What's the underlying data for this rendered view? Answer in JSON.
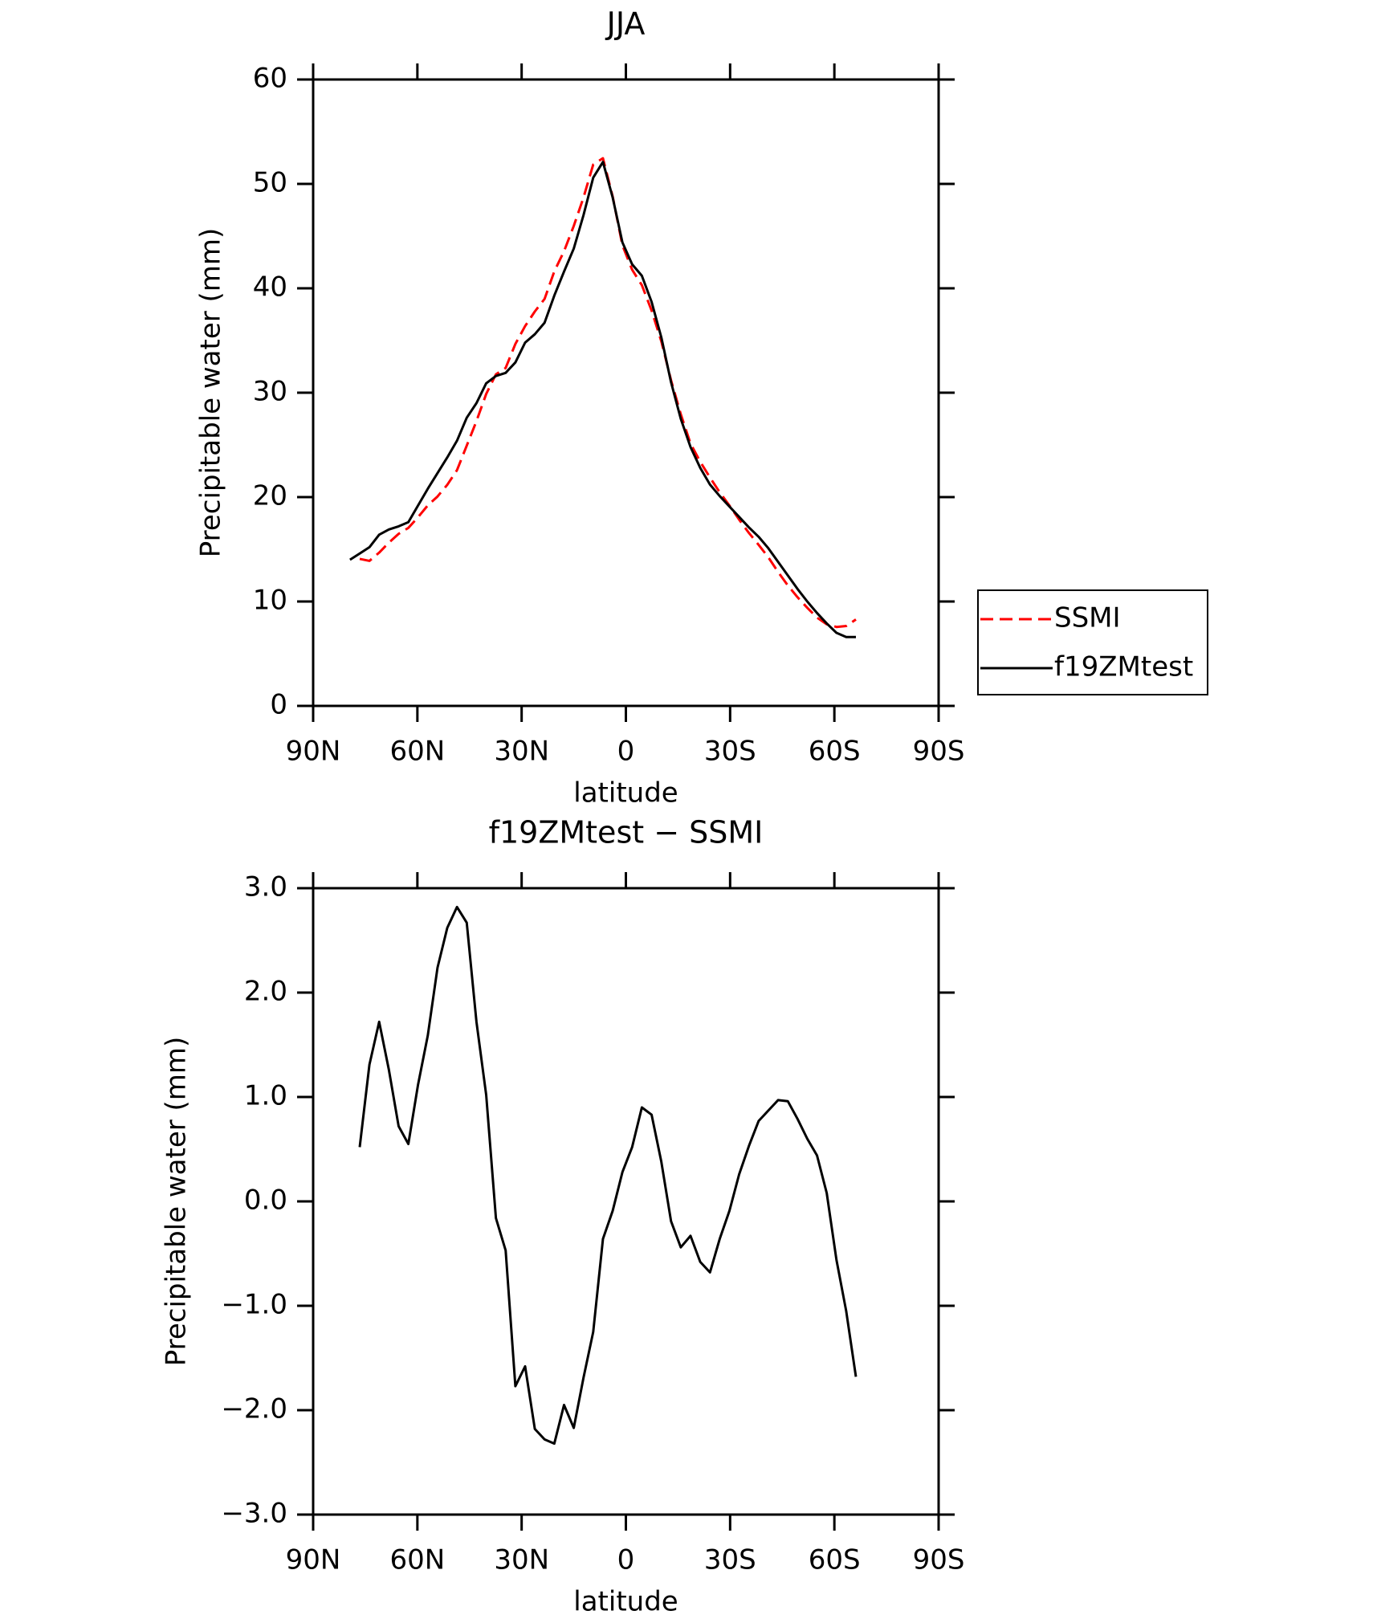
{
  "chart_data": [
    {
      "type": "line",
      "title": "JJA",
      "xlabel": "latitude",
      "ylabel": "Precipitable water (mm)",
      "x": [
        79.4,
        76.6,
        73.8,
        71,
        68.2,
        65.4,
        62.6,
        59.8,
        57,
        54.2,
        51.4,
        48.6,
        45.8,
        43,
        40.2,
        37.4,
        34.6,
        31.8,
        29,
        26.2,
        23.4,
        20.6,
        17.8,
        15,
        12.2,
        9.4,
        6.6,
        3.8,
        1,
        -1.8,
        -4.6,
        -7.4,
        -10.2,
        -13,
        -15.8,
        -18.6,
        -21.4,
        -24.2,
        -27,
        -29.8,
        -32.6,
        -35.4,
        -38.2,
        -41,
        -43.8,
        -46.6,
        -49.4,
        -52.2,
        -55,
        -57.8,
        -60.6,
        -63.4,
        -66.2
      ],
      "xlim": [
        90,
        -90
      ],
      "xticks": [
        {
          "value": 90,
          "label": "90N"
        },
        {
          "value": 60,
          "label": "60N"
        },
        {
          "value": 30,
          "label": "30N"
        },
        0,
        {
          "value": -30,
          "label": "30S"
        },
        {
          "value": -60,
          "label": "60S"
        },
        {
          "value": -90,
          "label": "90S"
        }
      ],
      "ylim": [
        0,
        60
      ],
      "yticks": [
        0,
        10,
        20,
        30,
        40,
        50,
        60
      ],
      "legend": "right",
      "series": [
        {
          "name": "SSMI",
          "color": "#ff0000",
          "linestyle": "dashed",
          "values": [
            null,
            14.08,
            13.89,
            14.68,
            15.64,
            16.48,
            17.05,
            18.08,
            19.21,
            20.06,
            21.18,
            22.58,
            24.93,
            27.28,
            29.88,
            31.76,
            32.37,
            34.67,
            36.38,
            37.78,
            38.98,
            41.62,
            43.55,
            45.97,
            48.69,
            51.85,
            52.46,
            48.79,
            44.12,
            41.78,
            40.3,
            37.87,
            34.92,
            31.19,
            27.94,
            25.13,
            23.38,
            21.88,
            20.46,
            19.19,
            17.84,
            16.57,
            15.43,
            14.23,
            12.83,
            11.54,
            10.41,
            9.4,
            8.46,
            7.82,
            7.56,
            7.65,
            8.28
          ]
        },
        {
          "name": "f19ZMtest",
          "color": "#000000",
          "linestyle": "solid",
          "values": [
            14.0,
            14.6,
            15.2,
            16.4,
            16.9,
            17.2,
            17.6,
            19.2,
            20.8,
            22.3,
            23.8,
            25.4,
            27.6,
            29.0,
            30.9,
            31.6,
            31.9,
            32.9,
            34.8,
            35.6,
            36.7,
            39.3,
            41.6,
            43.8,
            47.0,
            50.6,
            52.1,
            48.7,
            44.4,
            42.3,
            41.2,
            38.7,
            35.3,
            31.0,
            27.5,
            24.8,
            22.8,
            21.2,
            20.1,
            19.1,
            18.1,
            17.1,
            16.2,
            15.1,
            13.8,
            12.5,
            11.2,
            10.0,
            8.9,
            7.9,
            7.0,
            6.6,
            6.6
          ]
        }
      ]
    },
    {
      "type": "line",
      "title": "f19ZMtest − SSMI",
      "xlabel": "latitude",
      "ylabel": "Precipitable water (mm)",
      "x": [
        76.6,
        73.8,
        71,
        68.2,
        65.4,
        62.6,
        59.8,
        57,
        54.2,
        51.4,
        48.6,
        45.8,
        43,
        40.2,
        37.4,
        34.6,
        31.8,
        29,
        26.2,
        23.4,
        20.6,
        17.8,
        15,
        12.2,
        9.4,
        6.6,
        3.8,
        1,
        -1.8,
        -4.6,
        -7.4,
        -10.2,
        -13,
        -15.8,
        -18.6,
        -21.4,
        -24.2,
        -27,
        -29.8,
        -32.6,
        -35.4,
        -38.2,
        -41,
        -43.8,
        -46.6,
        -49.4,
        -52.2,
        -55,
        -57.8,
        -60.6,
        -63.4,
        -66.2
      ],
      "xlim": [
        90,
        -90
      ],
      "xticks": [
        {
          "value": 90,
          "label": "90N"
        },
        {
          "value": 60,
          "label": "60N"
        },
        {
          "value": 30,
          "label": "30N"
        },
        0,
        {
          "value": -30,
          "label": "30S"
        },
        {
          "value": -60,
          "label": "60S"
        },
        {
          "value": -90,
          "label": "90S"
        }
      ],
      "ylim": [
        -3,
        3
      ],
      "yticks": [
        {
          "value": -3,
          "label": "−3.0"
        },
        {
          "value": -2,
          "label": "−2.0"
        },
        {
          "value": -1,
          "label": "−1.0"
        },
        {
          "value": 0,
          "label": "0.0"
        },
        {
          "value": 1,
          "label": "1.0"
        },
        {
          "value": 2,
          "label": "2.0"
        },
        {
          "value": 3,
          "label": "3.0"
        }
      ],
      "color": "#000000",
      "values": [
        0.52,
        1.31,
        1.72,
        1.26,
        0.72,
        0.55,
        1.12,
        1.59,
        2.24,
        2.62,
        2.82,
        2.67,
        1.72,
        1.02,
        -0.16,
        -0.47,
        -1.77,
        -1.58,
        -2.18,
        -2.28,
        -2.32,
        -1.95,
        -2.17,
        -1.69,
        -1.25,
        -0.36,
        -0.09,
        0.28,
        0.52,
        0.9,
        0.83,
        0.38,
        -0.19,
        -0.44,
        -0.33,
        -0.58,
        -0.68,
        -0.36,
        -0.09,
        0.26,
        0.53,
        0.77,
        0.87,
        0.97,
        0.96,
        0.79,
        0.6,
        0.44,
        0.08,
        -0.56,
        -1.05,
        -1.68
      ]
    }
  ]
}
